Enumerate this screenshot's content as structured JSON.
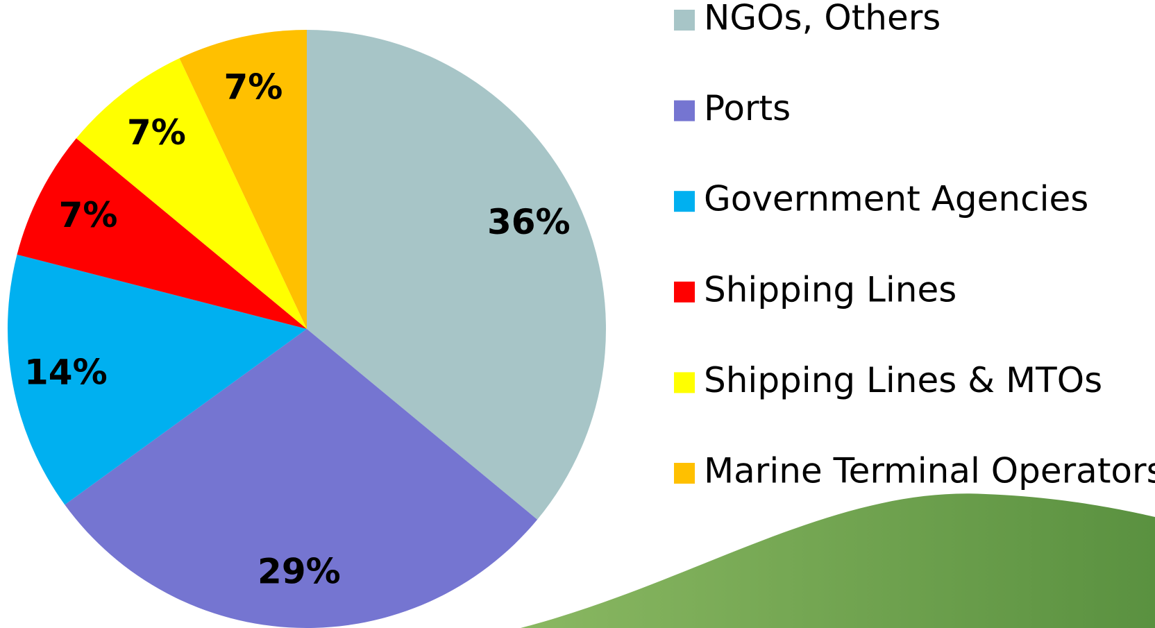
{
  "chart_data": {
    "type": "pie",
    "categories": [
      "NGOs, Others",
      "Ports",
      "Government Agencies",
      "Shipping Lines",
      "Shipping Lines & MTOs",
      "Marine Terminal Operators"
    ],
    "values": [
      36,
      29,
      14,
      7,
      7,
      7
    ],
    "value_labels": [
      "36%",
      "29%",
      "14%",
      "7%",
      "7%",
      "7%"
    ],
    "colors": [
      "#a7c5c7",
      "#7575d1",
      "#00b0f0",
      "#ff0000",
      "#ffff00",
      "#ffc000"
    ],
    "legend": "right"
  }
}
